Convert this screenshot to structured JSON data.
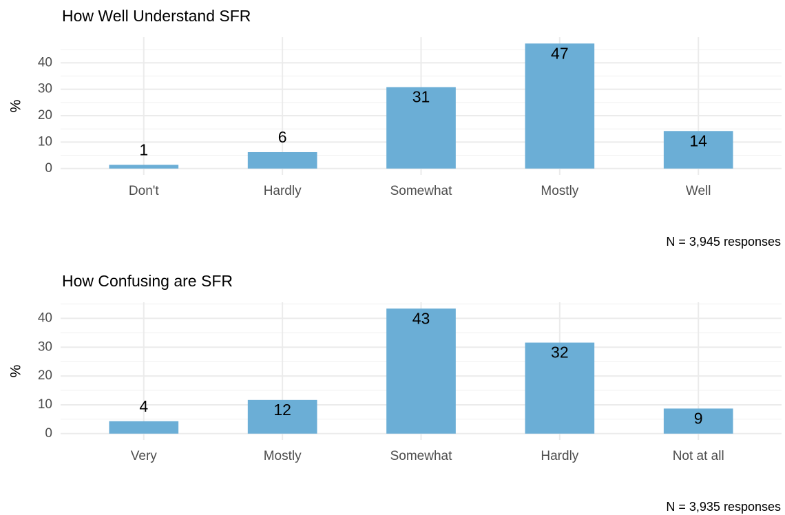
{
  "chart_data": [
    {
      "type": "bar",
      "title": "How Well Understand SFR",
      "y_label": "%",
      "note": "N =  3,945 responses",
      "categories": [
        "Don't",
        "Hardly",
        "Somewhat",
        "Mostly",
        "Well"
      ],
      "values": [
        1.4,
        6.2,
        30.8,
        47.3,
        14.2
      ],
      "value_labels": [
        "1",
        "6",
        "31",
        "47",
        "14"
      ],
      "color": "#6baed6",
      "ylim": [
        -2.4,
        49.7
      ],
      "yticks": [
        0,
        10,
        20,
        30,
        40
      ],
      "yticks_minor": [
        5,
        15,
        25,
        35,
        45
      ],
      "grid": true
    },
    {
      "type": "bar",
      "title": "How Confusing are SFR",
      "y_label": "%",
      "note": "N =  3,935 responses",
      "categories": [
        "Very",
        "Mostly",
        "Somewhat",
        "Hardly",
        "Not at all"
      ],
      "values": [
        4.3,
        11.7,
        43.4,
        31.6,
        8.7
      ],
      "value_labels": [
        "4",
        "12",
        "43",
        "32",
        "9"
      ],
      "color": "#6baed6",
      "ylim": [
        -2.2,
        45.6
      ],
      "yticks": [
        0,
        10,
        20,
        30,
        40
      ],
      "yticks_minor": [
        5,
        15,
        25,
        35,
        45
      ],
      "grid": true
    }
  ]
}
